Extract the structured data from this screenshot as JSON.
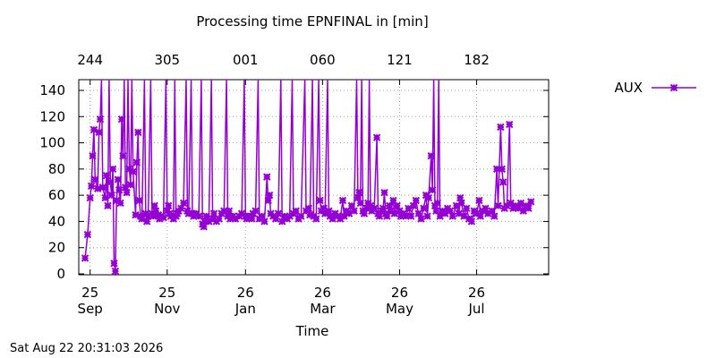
{
  "chart_data": {
    "type": "line",
    "title": "Processing time EPNFINAL in [min]",
    "xlabel": "Time",
    "ylabel": "",
    "ylim": [
      0,
      150
    ],
    "y_ticks": [
      0,
      20,
      40,
      60,
      80,
      100,
      120,
      140
    ],
    "grid": true,
    "legend_position": "top-right, outside plot",
    "color": "#9400d3",
    "marker": "x-star",
    "x_ticks_bottom": [
      {
        "day": 0,
        "line1": "25",
        "line2": "Sep"
      },
      {
        "day": 61,
        "line1": "25",
        "line2": "Nov"
      },
      {
        "day": 123,
        "line1": "26",
        "line2": "Jan"
      },
      {
        "day": 184,
        "line1": "26",
        "line2": "Mar"
      },
      {
        "day": 245,
        "line1": "26",
        "line2": "May"
      },
      {
        "day": 306,
        "line1": "26",
        "line2": "Jul"
      }
    ],
    "x_ticks_top": [
      {
        "day": 0,
        "label": "244"
      },
      {
        "day": 61,
        "label": "305"
      },
      {
        "day": 123,
        "label": "001"
      },
      {
        "day": 184,
        "label": "060"
      },
      {
        "day": 245,
        "label": "121"
      },
      {
        "day": 306,
        "label": "182"
      }
    ],
    "xlim_days": [
      -9,
      363
    ],
    "series": [
      {
        "name": "AUX",
        "points": [
          [
            -4,
            12
          ],
          [
            -2,
            30
          ],
          [
            0,
            58
          ],
          [
            1,
            67
          ],
          [
            2,
            90
          ],
          [
            3,
            110
          ],
          [
            4,
            72
          ],
          [
            6,
            65
          ],
          [
            7,
            108
          ],
          [
            8,
            118
          ],
          [
            9,
            150
          ],
          [
            10,
            66
          ],
          [
            12,
            58
          ],
          [
            13,
            75
          ],
          [
            14,
            52
          ],
          [
            15,
            150
          ],
          [
            16,
            70
          ],
          [
            17,
            60
          ],
          [
            18,
            80
          ],
          [
            19,
            8
          ],
          [
            20,
            2
          ],
          [
            21,
            56
          ],
          [
            22,
            72
          ],
          [
            23,
            64
          ],
          [
            24,
            54
          ],
          [
            25,
            118
          ],
          [
            26,
            90
          ],
          [
            27,
            150
          ],
          [
            28,
            66
          ],
          [
            29,
            62
          ],
          [
            30,
            150
          ],
          [
            31,
            80
          ],
          [
            32,
            68
          ],
          [
            33,
            150
          ],
          [
            34,
            78
          ],
          [
            36,
            45
          ],
          [
            37,
            85
          ],
          [
            38,
            108
          ],
          [
            39,
            56
          ],
          [
            40,
            44
          ],
          [
            41,
            42
          ],
          [
            43,
            150
          ],
          [
            44,
            46
          ],
          [
            45,
            40
          ],
          [
            46,
            44
          ],
          [
            48,
            150
          ],
          [
            49,
            46
          ],
          [
            50,
            44
          ],
          [
            51,
            52
          ],
          [
            52,
            48
          ],
          [
            54,
            45
          ],
          [
            55,
            42
          ],
          [
            56,
            44
          ],
          [
            58,
            43
          ],
          [
            60,
            150
          ],
          [
            61,
            48
          ],
          [
            62,
            52
          ],
          [
            63,
            46
          ],
          [
            64,
            44
          ],
          [
            66,
            42
          ],
          [
            67,
            150
          ],
          [
            68,
            44
          ],
          [
            69,
            46
          ],
          [
            70,
            48
          ],
          [
            72,
            50
          ],
          [
            74,
            54
          ],
          [
            76,
            150
          ],
          [
            77,
            48
          ],
          [
            78,
            46
          ],
          [
            80,
            150
          ],
          [
            81,
            46
          ],
          [
            82,
            44
          ],
          [
            84,
            46
          ],
          [
            86,
            44
          ],
          [
            88,
            150
          ],
          [
            89,
            38
          ],
          [
            90,
            36
          ],
          [
            91,
            40
          ],
          [
            92,
            44
          ],
          [
            94,
            40
          ],
          [
            96,
            150
          ],
          [
            97,
            42
          ],
          [
            98,
            46
          ],
          [
            100,
            40
          ],
          [
            102,
            42
          ],
          [
            104,
            46
          ],
          [
            106,
            48
          ],
          [
            108,
            150
          ],
          [
            109,
            44
          ],
          [
            110,
            48
          ],
          [
            111,
            42
          ],
          [
            113,
            44
          ],
          [
            115,
            42
          ],
          [
            118,
            44
          ],
          [
            120,
            46
          ],
          [
            122,
            150
          ],
          [
            123,
            44
          ],
          [
            124,
            42
          ],
          [
            126,
            44
          ],
          [
            128,
            42
          ],
          [
            129,
            46
          ],
          [
            131,
            48
          ],
          [
            133,
            150
          ],
          [
            134,
            42
          ],
          [
            136,
            44
          ],
          [
            138,
            40
          ],
          [
            140,
            74
          ],
          [
            141,
            56
          ],
          [
            142,
            60
          ],
          [
            143,
            46
          ],
          [
            145,
            44
          ],
          [
            147,
            42
          ],
          [
            149,
            46
          ],
          [
            151,
            150
          ],
          [
            152,
            40
          ],
          [
            154,
            44
          ],
          [
            156,
            42
          ],
          [
            158,
            44
          ],
          [
            160,
            150
          ],
          [
            161,
            46
          ],
          [
            163,
            48
          ],
          [
            165,
            42
          ],
          [
            167,
            44
          ],
          [
            170,
            150
          ],
          [
            171,
            48
          ],
          [
            173,
            50
          ],
          [
            174,
            45
          ],
          [
            176,
            150
          ],
          [
            177,
            44
          ],
          [
            179,
            42
          ],
          [
            181,
            150
          ],
          [
            182,
            56
          ],
          [
            183,
            48
          ],
          [
            185,
            50
          ],
          [
            186,
            46
          ],
          [
            188,
            150
          ],
          [
            189,
            48
          ],
          [
            190,
            44
          ],
          [
            192,
            42
          ],
          [
            194,
            46
          ],
          [
            196,
            44
          ],
          [
            198,
            42
          ],
          [
            200,
            56
          ],
          [
            201,
            44
          ],
          [
            203,
            48
          ],
          [
            205,
            46
          ],
          [
            207,
            52
          ],
          [
            209,
            48
          ],
          [
            211,
            150
          ],
          [
            212,
            58
          ],
          [
            213,
            62
          ],
          [
            214,
            54
          ],
          [
            215,
            150
          ],
          [
            216,
            48
          ],
          [
            217,
            46
          ],
          [
            219,
            50
          ],
          [
            220,
            54
          ],
          [
            221,
            150
          ],
          [
            222,
            52
          ],
          [
            223,
            48
          ],
          [
            225,
            50
          ],
          [
            227,
            104
          ],
          [
            228,
            46
          ],
          [
            229,
            44
          ],
          [
            231,
            48
          ],
          [
            232,
            50
          ],
          [
            233,
            62
          ],
          [
            234,
            46
          ],
          [
            235,
            44
          ],
          [
            237,
            52
          ],
          [
            238,
            48
          ],
          [
            240,
            56
          ],
          [
            241,
            46
          ],
          [
            243,
            52
          ],
          [
            245,
            48
          ],
          [
            246,
            44
          ],
          [
            248,
            46
          ],
          [
            250,
            44
          ],
          [
            252,
            50
          ],
          [
            254,
            44
          ],
          [
            256,
            52
          ],
          [
            258,
            56
          ],
          [
            260,
            46
          ],
          [
            262,
            42
          ],
          [
            264,
            50
          ],
          [
            266,
            60
          ],
          [
            267,
            44
          ],
          [
            268,
            58
          ],
          [
            270,
            90
          ],
          [
            271,
            64
          ],
          [
            272,
            150
          ],
          [
            273,
            52
          ],
          [
            274,
            48
          ],
          [
            275,
            54
          ],
          [
            276,
            150
          ],
          [
            277,
            44
          ],
          [
            279,
            48
          ],
          [
            281,
            46
          ],
          [
            283,
            50
          ],
          [
            285,
            48
          ],
          [
            287,
            44
          ],
          [
            290,
            52
          ],
          [
            292,
            46
          ],
          [
            293,
            58
          ],
          [
            294,
            54
          ],
          [
            296,
            44
          ],
          [
            298,
            50
          ],
          [
            300,
            42
          ],
          [
            302,
            40
          ],
          [
            304,
            48
          ],
          [
            306,
            46
          ],
          [
            308,
            56
          ],
          [
            309,
            44
          ],
          [
            311,
            48
          ],
          [
            313,
            50
          ],
          [
            315,
            46
          ],
          [
            318,
            48
          ],
          [
            320,
            44
          ],
          [
            322,
            80
          ],
          [
            323,
            52
          ],
          [
            325,
            112
          ],
          [
            326,
            80
          ],
          [
            327,
            70
          ],
          [
            328,
            50
          ],
          [
            330,
            52
          ],
          [
            332,
            114
          ],
          [
            333,
            54
          ],
          [
            335,
            50
          ],
          [
            337,
            52
          ],
          [
            339,
            50
          ],
          [
            341,
            54
          ],
          [
            343,
            48
          ],
          [
            345,
            52
          ],
          [
            347,
            50
          ],
          [
            349,
            55
          ]
        ]
      }
    ]
  },
  "footer": {
    "timestamp": "Sat Aug 22 20:31:03 2026"
  }
}
